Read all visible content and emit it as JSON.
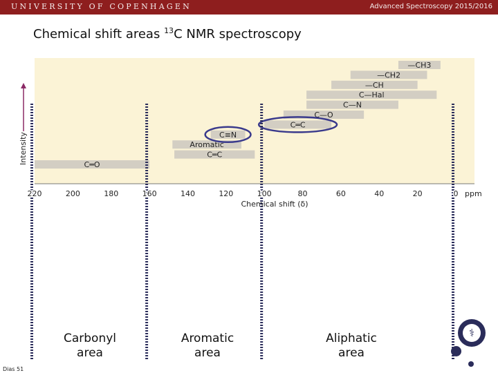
{
  "header": {
    "university": "UNIVERSITY OF COPENHAGEN",
    "course": "Advanced Spectroscopy 2015/2016"
  },
  "slide": {
    "title_prefix": "Chemical shift areas ",
    "title_isotope": "13",
    "title_suffix": "C NMR spectroscopy",
    "slide_number": "Dias 51"
  },
  "chart_data": {
    "type": "range",
    "xlabel": "Chemical shift (δ)",
    "ylabel": "Intensity",
    "x_reversed": true,
    "xlim": [
      220,
      0
    ],
    "x_unit": "ppm",
    "ticks": [
      220,
      200,
      180,
      160,
      140,
      120,
      100,
      80,
      60,
      40,
      20,
      0
    ],
    "ranges": [
      {
        "label": "—CH3",
        "from": 30,
        "to": 8,
        "row": 1
      },
      {
        "label": "—CH2",
        "from": 55,
        "to": 15,
        "row": 2
      },
      {
        "label": "—CH",
        "from": 65,
        "to": 20,
        "row": 3
      },
      {
        "label": "C—Hal",
        "from": 78,
        "to": 10,
        "row": 4
      },
      {
        "label": "C—N",
        "from": 78,
        "to": 30,
        "row": 5
      },
      {
        "label": "C—O",
        "from": 90,
        "to": 48,
        "row": 6
      },
      {
        "label": "C═C",
        "from": 100,
        "to": 65,
        "row": 7
      },
      {
        "label": "C≡N",
        "from": 128,
        "to": 110,
        "row": 8
      },
      {
        "label": "Aromatic",
        "from": 148,
        "to": 112,
        "row": 9
      },
      {
        "label": "C═C",
        "from": 147,
        "to": 105,
        "row": 10
      },
      {
        "label": "C═O",
        "from": 220,
        "to": 160,
        "row": 11
      }
    ],
    "highlighted": [
      "C≡N",
      "C═C"
    ]
  },
  "areas": [
    {
      "label_line1": "Carbonyl",
      "label_line2": "area"
    },
    {
      "label_line1": "Aromatic",
      "label_line2": "area"
    },
    {
      "label_line1": "Aliphatic",
      "label_line2": "area"
    }
  ],
  "divider_shifts": [
    220,
    160,
    100,
    0
  ],
  "colors": {
    "header_bg": "#8e1e1e",
    "plot_bg": "#fbf3d6",
    "bar": "#d3cec3",
    "highlight_ellipse": "#3a3a8c",
    "intensity_arrow": "#8b2a66",
    "divider": "#2a2c5a"
  }
}
